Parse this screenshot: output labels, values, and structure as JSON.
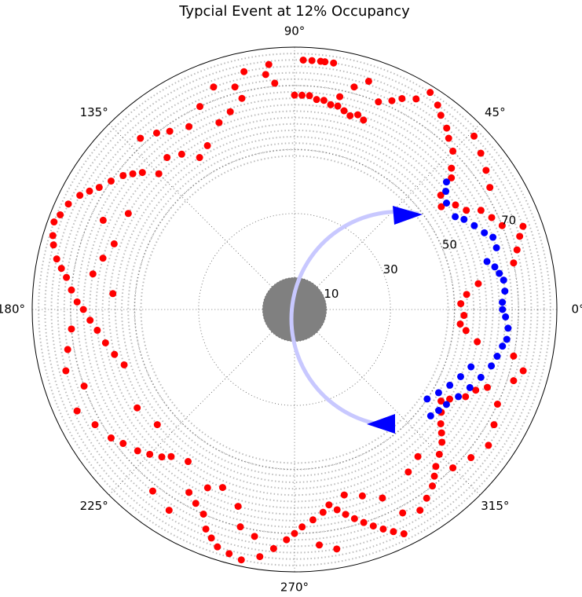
{
  "chart_data": {
    "type": "polar-scatter",
    "title": "Typcial Event at 12% Occupancy",
    "ylim": [
      0,
      82
    ],
    "yticks": [
      10,
      30,
      50,
      70
    ],
    "inner_disk": 10,
    "inner_disk_color": "#808080",
    "rings": [
      48,
      50,
      52,
      54,
      56,
      58,
      60,
      62,
      64,
      66,
      68,
      70,
      72,
      74,
      76,
      78,
      80
    ],
    "xticks": [
      {
        "value": 0,
        "label": "0°"
      },
      {
        "value": 45,
        "label": "45°"
      },
      {
        "value": 90,
        "label": "90°"
      },
      {
        "value": 135,
        "label": "135°"
      },
      {
        "value": 180,
        "label": "180°"
      },
      {
        "value": 225,
        "label": "225°"
      },
      {
        "value": 270,
        "label": "270°"
      },
      {
        "value": 315,
        "label": "315°"
      }
    ],
    "grid": true,
    "series": [
      {
        "color": "#ff0000",
        "x": [
          88,
          86,
          84,
          83,
          81,
          96,
          97,
          95,
          90,
          88,
          86,
          84,
          82,
          80,
          78,
          76,
          74,
          72,
          70,
          102,
          105,
          110,
          115,
          120,
          125,
          128,
          132,
          118,
          122,
          126,
          130,
          135,
          112,
          108,
          104,
          138,
          140,
          142,
          145,
          148,
          150,
          152,
          155,
          158,
          160,
          163,
          165,
          168,
          170,
          172,
          175,
          178,
          180,
          183,
          186,
          190,
          194,
          198,
          160,
          165,
          170,
          175,
          185,
          190,
          195,
          200,
          155,
          150,
          205,
          210,
          215,
          218,
          222,
          225,
          228,
          230,
          235,
          240,
          243,
          246,
          248,
          250,
          252,
          255,
          258,
          212,
          220,
          232,
          238,
          244,
          248,
          254,
          256,
          260,
          262,
          265,
          268,
          270,
          272,
          275,
          278,
          280,
          282,
          284,
          286,
          288,
          290,
          292,
          294,
          296,
          298,
          276,
          280,
          285,
          290,
          295,
          302,
          305,
          308,
          310,
          312,
          315,
          318,
          320,
          322,
          325,
          328,
          330,
          333,
          336,
          338,
          305,
          310,
          315,
          320,
          325,
          330,
          335,
          342,
          345,
          348,
          350,
          353,
          355,
          358,
          2,
          5,
          8,
          12,
          15,
          18,
          20,
          22,
          25,
          28,
          30,
          33,
          35,
          38,
          40,
          42,
          45,
          48,
          50,
          53,
          55,
          58,
          60,
          63,
          65,
          68,
          72,
          75,
          78,
          32,
          36,
          40,
          44
        ],
        "values": [
          78,
          78,
          78,
          78,
          78,
          77,
          74,
          71,
          67,
          67,
          67,
          66,
          66,
          65,
          65,
          64,
          63,
          64,
          63,
          76,
          72,
          74,
          70,
          66,
          68,
          70,
          72,
          58,
          56,
          60,
          62,
          60,
          63,
          65,
          68,
          64,
          66,
          68,
          70,
          72,
          74,
          76,
          78,
          79,
          80,
          79,
          78,
          76,
          74,
          72,
          70,
          68,
          66,
          64,
          62,
          60,
          58,
          56,
          60,
          62,
          64,
          57,
          70,
          72,
          74,
          70,
          66,
          60,
          75,
          72,
          70,
          68,
          66,
          64,
          62,
          60,
          58,
          66,
          68,
          70,
          74,
          76,
          78,
          79,
          80,
          58,
          56,
          72,
          74,
          62,
          60,
          64,
          70,
          72,
          78,
          75,
          72,
          70,
          68,
          66,
          64,
          62,
          64,
          66,
          68,
          70,
          72,
          74,
          76,
          78,
          72,
          74,
          76,
          60,
          62,
          65,
          74,
          72,
          70,
          68,
          66,
          64,
          62,
          60,
          58,
          56,
          54,
          56,
          60,
          62,
          65,
          62,
          60,
          70,
          72,
          74,
          72,
          70,
          72,
          74,
          70,
          58,
          54,
          52,
          53,
          52,
          54,
          58,
          70,
          72,
          74,
          76,
          70,
          68,
          66,
          62,
          60,
          56,
          58,
          64,
          66,
          70,
          72,
          74,
          76,
          78,
          80,
          76,
          74,
          72,
          70,
          75,
          72,
          68,
          72,
          74,
          76,
          78
        ]
      },
      {
        "color": "#0000ff",
        "x": [
          40,
          38,
          35,
          30,
          28,
          25,
          22,
          20,
          17,
          14,
          12,
          10,
          8,
          5,
          2,
          0,
          -2,
          -5,
          -8,
          -10,
          -13,
          -16,
          -20,
          -24,
          -28,
          -32,
          -35,
          -38,
          -18,
          -22,
          -26,
          -30,
          -34
        ],
        "values": [
          62,
          60,
          58,
          58,
          60,
          62,
          64,
          66,
          66,
          62,
          64,
          65,
          66,
          66,
          65,
          65,
          66,
          67,
          67,
          66,
          65,
          64,
          62,
          60,
          58,
          56,
          55,
          54,
          58,
          56,
          54,
          52,
          50
        ]
      }
    ]
  }
}
